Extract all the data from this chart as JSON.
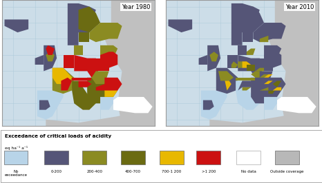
{
  "map1_label": "Year 1980",
  "map2_label": "Year 2010",
  "legend_title": "Exceedance of critical loads of acidity",
  "legend_subtitle": "eq ha⁻¹ a⁻¹",
  "legend_items": [
    {
      "label": "No\nexceedance",
      "color": "#b8d4e8"
    },
    {
      "label": "0-200",
      "color": "#555577"
    },
    {
      "label": "200-400",
      "color": "#8b8b22"
    },
    {
      "label": "400-700",
      "color": "#6b6b12"
    },
    {
      "label": "700-1 200",
      "color": "#e8b800"
    },
    {
      "label": ">1 200",
      "color": "#cc1111"
    },
    {
      "label": "No data",
      "color": "#ffffff"
    },
    {
      "label": "Outside coverage",
      "color": "#b8b8b8"
    }
  ],
  "sea_color": "#ccdde8",
  "outside_color": "#c0c0c0",
  "map_border": "#999999",
  "fig_bg": "#ffffff",
  "legend_border": "#aaaaaa",
  "gridline_color": "#aac8d8",
  "label_bg": "#ffffff"
}
